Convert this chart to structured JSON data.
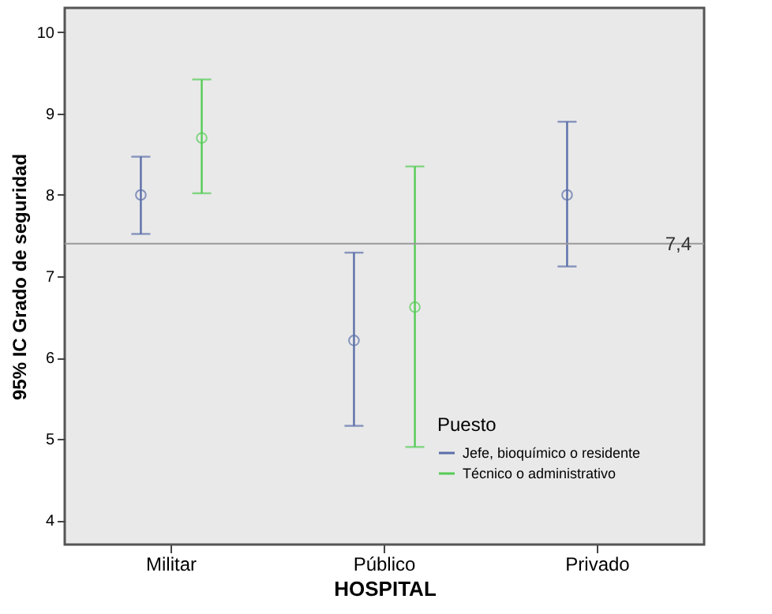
{
  "chart_data": {
    "type": "scatter",
    "xlabel": "HOSPITAL",
    "ylabel": "95% IC Grado de seguridad",
    "legend_title": "Puesto",
    "categories": [
      "Militar",
      "Público",
      "Privado"
    ],
    "series": [
      {
        "name": "Jefe, bioquímico o residente",
        "color": "#5a6ea8",
        "values": [
          8.0,
          6.21,
          8.0
        ],
        "errors": [
          [
            7.52,
            8.47
          ],
          [
            5.16,
            7.29
          ],
          [
            7.12,
            8.9
          ]
        ]
      },
      {
        "name": "Técnico o administrativo",
        "color": "#55cc55",
        "values": [
          8.7,
          6.62,
          null
        ],
        "errors": [
          [
            8.02,
            9.42
          ],
          [
            4.9,
            8.35
          ],
          null
        ]
      }
    ],
    "ylim": [
      3.7,
      10.3
    ],
    "yticks": [
      4,
      5,
      6,
      7,
      8,
      9,
      10
    ],
    "grid": false,
    "marker": "circle",
    "legend": "bottom right",
    "ref_lines": [
      {
        "axis": "y",
        "value": 7.4,
        "label": "7,4",
        "color": "#999999"
      }
    ]
  }
}
